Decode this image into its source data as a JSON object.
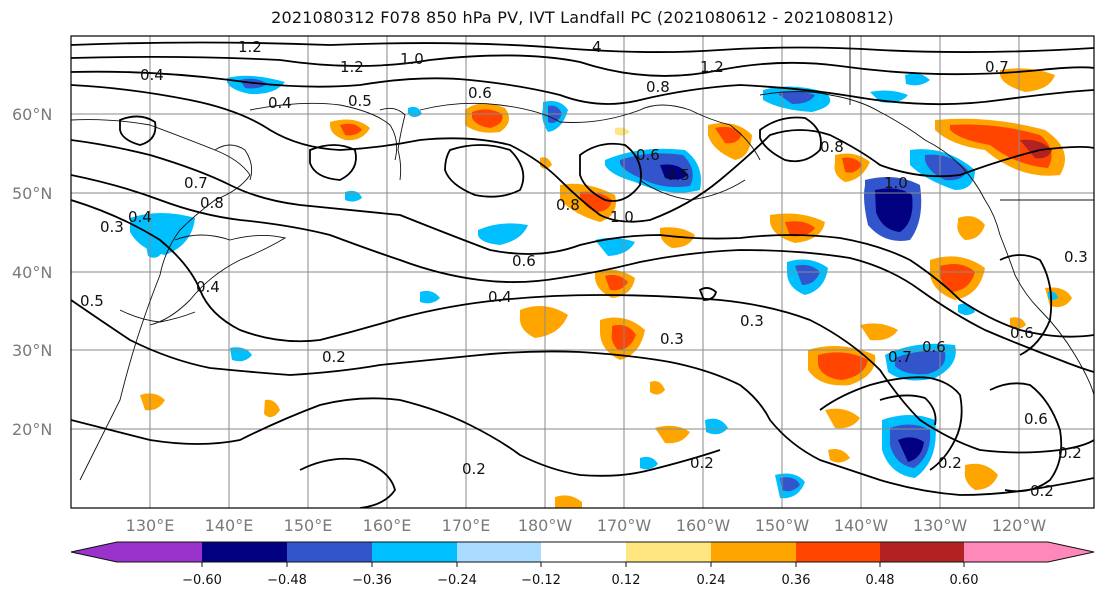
{
  "title": "2021080312 F078 850 hPa PV, IVT Landfall PC (2021080612 - 2021080812)",
  "lat_labels": [
    "60°N",
    "50°N",
    "40°N",
    "30°N",
    "20°N"
  ],
  "lon_labels": [
    "130°E",
    "140°E",
    "150°E",
    "160°E",
    "170°E",
    "180°W",
    "170°W",
    "160°W",
    "150°W",
    "140°W",
    "130°W",
    "120°W"
  ],
  "contour_labels": [
    "1.2",
    "4",
    "1.2",
    "1.0",
    "1.2",
    "0.7",
    "0.4",
    "0.4",
    "0.5",
    "0.6",
    "0.8",
    "0.8",
    "0.7",
    "0.3",
    "0.4",
    "0.5",
    "0.4",
    "0.6",
    "0.5",
    "0.8",
    "1.0",
    "0.6",
    "0.4",
    "0.3",
    "0.2",
    "0.3",
    "0.7",
    "0.6",
    "0.6",
    "0.6",
    "0.2",
    "0.2",
    "0.2",
    "0.2",
    "0.2",
    "0.8",
    "1.0",
    "0.3"
  ],
  "colorbar": {
    "ticks": [
      "−0.60",
      "−0.48",
      "−0.36",
      "−0.24",
      "−0.12",
      "0.12",
      "0.24",
      "0.36",
      "0.48",
      "0.60"
    ],
    "colors": [
      "#9933cc",
      "#000080",
      "#3355cc",
      "#00bfff",
      "#aadcff",
      "#ffffff",
      "#ffe680",
      "#ffa500",
      "#ff4500",
      "#b22222",
      "#ff88bb"
    ]
  }
}
